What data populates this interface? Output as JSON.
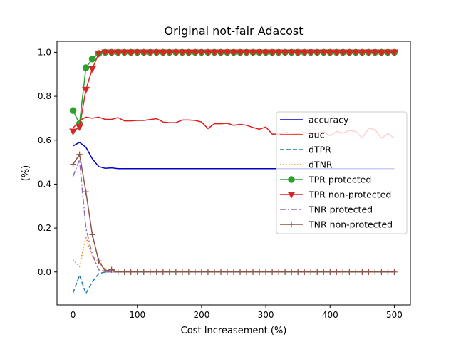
{
  "chart_data": {
    "type": "line",
    "title": "Original not-fair Adacost",
    "xlabel": "Cost Increasement (%)",
    "ylabel": "(%)",
    "xlim": [
      -25,
      525
    ],
    "ylim": [
      -0.15,
      1.05
    ],
    "xticks": [
      0,
      100,
      200,
      300,
      400,
      500
    ],
    "yticks": [
      0.0,
      0.2,
      0.4,
      0.6,
      0.8,
      1.0
    ],
    "xtick_labels": [
      "0",
      "100",
      "200",
      "300",
      "400",
      "500"
    ],
    "ytick_labels": [
      "0.0",
      "0.2",
      "0.4",
      "0.6",
      "0.8",
      "1.0"
    ],
    "grid": false,
    "legend_position": "center-right",
    "x": [
      0,
      10,
      20,
      30,
      40,
      50,
      60,
      70,
      80,
      90,
      100,
      110,
      120,
      130,
      140,
      150,
      160,
      170,
      180,
      190,
      200,
      210,
      220,
      230,
      240,
      250,
      260,
      270,
      280,
      290,
      300,
      310,
      320,
      330,
      340,
      350,
      360,
      370,
      380,
      390,
      400,
      410,
      420,
      430,
      440,
      450,
      460,
      470,
      480,
      490,
      500
    ],
    "series": [
      {
        "name": "accuracy",
        "color": "#0000cc",
        "dash": "",
        "marker": "none",
        "values": [
          0.574,
          0.59,
          0.568,
          0.515,
          0.48,
          0.472,
          0.474,
          0.47,
          0.47,
          0.47,
          0.47,
          0.47,
          0.47,
          0.47,
          0.47,
          0.47,
          0.47,
          0.47,
          0.47,
          0.47,
          0.47,
          0.47,
          0.47,
          0.47,
          0.47,
          0.47,
          0.47,
          0.47,
          0.47,
          0.47,
          0.47,
          0.47,
          0.47,
          0.47,
          0.47,
          0.47,
          0.47,
          0.47,
          0.47,
          0.47,
          0.47,
          0.47,
          0.47,
          0.47,
          0.47,
          0.47,
          0.47,
          0.47,
          0.47,
          0.47,
          0.47
        ]
      },
      {
        "name": "auc",
        "color": "#e41a1c",
        "dash": "",
        "marker": "none",
        "values": [
          0.655,
          0.69,
          0.705,
          0.7,
          0.705,
          0.695,
          0.695,
          0.703,
          0.688,
          0.688,
          0.69,
          0.69,
          0.694,
          0.698,
          0.683,
          0.68,
          0.68,
          0.692,
          0.692,
          0.69,
          0.683,
          0.653,
          0.675,
          0.675,
          0.677,
          0.668,
          0.672,
          0.668,
          0.658,
          0.65,
          0.66,
          0.628,
          0.628,
          0.635,
          0.632,
          0.63,
          0.635,
          0.628,
          0.632,
          0.638,
          0.62,
          0.64,
          0.632,
          0.645,
          0.64,
          0.61,
          0.655,
          0.648,
          0.61,
          0.63,
          0.61
        ]
      },
      {
        "name": "dTPR",
        "color": "#1f77b4",
        "dash": "6,3",
        "marker": "none",
        "values": [
          -0.095,
          -0.015,
          -0.098,
          -0.045,
          -0.008,
          0.0,
          0.0,
          0.0,
          0.0,
          0.0,
          0.0,
          0.0,
          0.0,
          0.0,
          0.0,
          0.0,
          0.0,
          0.0,
          0.0,
          0.0,
          0.0,
          0.0,
          0.0,
          0.0,
          0.0,
          0.0,
          0.0,
          0.0,
          0.0,
          0.0,
          0.0,
          0.0,
          0.0,
          0.0,
          0.0,
          0.0,
          0.0,
          0.0,
          0.0,
          0.0,
          0.0,
          0.0,
          0.0,
          0.0,
          0.0,
          0.0,
          0.0,
          0.0,
          0.0,
          0.0,
          0.0
        ]
      },
      {
        "name": "dTNR",
        "color": "#ff7f0e",
        "dash": "1.5,2.5",
        "marker": "none",
        "values": [
          0.055,
          0.025,
          0.16,
          0.07,
          0.055,
          0.01,
          0.005,
          0.0,
          0.0,
          0.0,
          0.0,
          0.0,
          0.0,
          0.0,
          0.0,
          0.0,
          0.0,
          0.0,
          0.0,
          0.0,
          0.0,
          0.0,
          0.0,
          0.0,
          0.0,
          0.0,
          0.0,
          0.0,
          0.0,
          0.0,
          0.0,
          0.0,
          0.0,
          0.0,
          0.0,
          0.0,
          0.0,
          0.0,
          0.0,
          0.0,
          0.0,
          0.0,
          0.0,
          0.0,
          0.0,
          0.0,
          0.0,
          0.0,
          0.0,
          0.0,
          0.0
        ]
      },
      {
        "name": "TPR protected",
        "color": "#2ca02c",
        "dash": "",
        "marker": "circle",
        "values": [
          0.735,
          0.675,
          0.93,
          0.97,
          0.995,
          1.0,
          1.0,
          1.0,
          1.0,
          1.0,
          1.0,
          1.0,
          1.0,
          1.0,
          1.0,
          1.0,
          1.0,
          1.0,
          1.0,
          1.0,
          1.0,
          1.0,
          1.0,
          1.0,
          1.0,
          1.0,
          1.0,
          1.0,
          1.0,
          1.0,
          1.0,
          1.0,
          1.0,
          1.0,
          1.0,
          1.0,
          1.0,
          1.0,
          1.0,
          1.0,
          1.0,
          1.0,
          1.0,
          1.0,
          1.0,
          1.0,
          1.0,
          1.0,
          1.0,
          1.0,
          1.0
        ]
      },
      {
        "name": "TPR non-protected",
        "color": "#d62728",
        "dash": "",
        "marker": "triangle-down",
        "values": [
          0.64,
          0.66,
          0.83,
          0.925,
          0.995,
          1.0,
          1.0,
          1.0,
          1.0,
          1.0,
          1.0,
          1.0,
          1.0,
          1.0,
          1.0,
          1.0,
          1.0,
          1.0,
          1.0,
          1.0,
          1.0,
          1.0,
          1.0,
          1.0,
          1.0,
          1.0,
          1.0,
          1.0,
          1.0,
          1.0,
          1.0,
          1.0,
          1.0,
          1.0,
          1.0,
          1.0,
          1.0,
          1.0,
          1.0,
          1.0,
          1.0,
          1.0,
          1.0,
          1.0,
          1.0,
          1.0,
          1.0,
          1.0,
          1.0,
          1.0,
          1.0
        ]
      },
      {
        "name": "TNR protected",
        "color": "#9467bd",
        "dash": "8,3,2,3",
        "marker": "none",
        "values": [
          0.435,
          0.51,
          0.2,
          0.08,
          0.01,
          0.0,
          0.0,
          0.0,
          0.0,
          0.0,
          0.0,
          0.0,
          0.0,
          0.0,
          0.0,
          0.0,
          0.0,
          0.0,
          0.0,
          0.0,
          0.0,
          0.0,
          0.0,
          0.0,
          0.0,
          0.0,
          0.0,
          0.0,
          0.0,
          0.0,
          0.0,
          0.0,
          0.0,
          0.0,
          0.0,
          0.0,
          0.0,
          0.0,
          0.0,
          0.0,
          0.0,
          0.0,
          0.0,
          0.0,
          0.0,
          0.0,
          0.0,
          0.0,
          0.0,
          0.0,
          0.0
        ]
      },
      {
        "name": "TNR non-protected",
        "color": "#8c564b",
        "dash": "",
        "marker": "plus",
        "values": [
          0.49,
          0.535,
          0.365,
          0.17,
          0.05,
          0.005,
          0.01,
          0.0,
          0.0,
          0.0,
          0.0,
          0.0,
          0.0,
          0.0,
          0.0,
          0.0,
          0.0,
          0.0,
          0.0,
          0.0,
          0.0,
          0.0,
          0.0,
          0.0,
          0.0,
          0.0,
          0.0,
          0.0,
          0.0,
          0.0,
          0.0,
          0.0,
          0.0,
          0.0,
          0.0,
          0.0,
          0.0,
          0.0,
          0.0,
          0.0,
          0.0,
          0.0,
          0.0,
          0.0,
          0.0,
          0.0,
          0.0,
          0.0,
          0.0,
          0.0,
          0.0
        ]
      }
    ]
  }
}
